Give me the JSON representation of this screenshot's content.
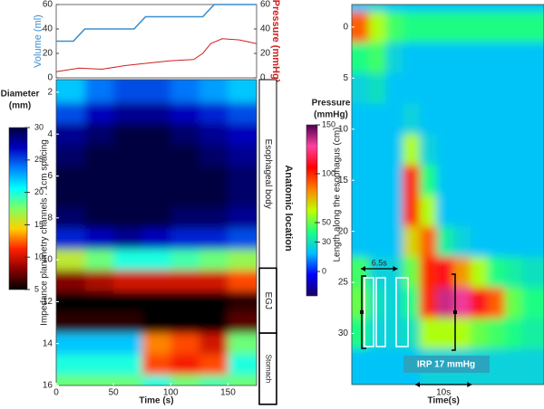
{
  "chart_data": [
    {
      "type": "line",
      "ylabel": "Volume (ml)",
      "y2label": "Pressure (mmHg)",
      "xlim": [
        0,
        175
      ],
      "ylim": [
        0,
        60
      ],
      "yticks": [
        0,
        20,
        40,
        60
      ],
      "y2lim": [
        0,
        60
      ],
      "y2ticks": [
        0,
        20,
        40,
        60
      ],
      "series": [
        {
          "color": "#3a8fd0",
          "x": [
            0,
            15,
            25,
            68,
            78,
            128,
            138,
            175
          ],
          "values": [
            30,
            30,
            40,
            40,
            50,
            50,
            60,
            60
          ]
        },
        {
          "color": "#d02020",
          "axis": "y2",
          "x": [
            0,
            20,
            40,
            60,
            80,
            100,
            120,
            128,
            135,
            145,
            160,
            175
          ],
          "values": [
            5,
            8,
            7,
            10,
            12,
            14,
            15,
            20,
            28,
            32,
            31,
            28
          ]
        }
      ]
    },
    {
      "type": "heatmap",
      "xlabel": "Time (s)",
      "ylabel": "Impedance planimetry channels : 1cm spacing",
      "xlim": [
        0,
        175
      ],
      "xticks": [
        0,
        50,
        100,
        150
      ],
      "ylim": [
        1.4,
        16
      ],
      "yticks": [
        2,
        4,
        6,
        8,
        10,
        12,
        14,
        16
      ],
      "x": [
        12.5,
        37.5,
        62.5,
        87.5,
        112.5,
        137.5,
        162.5
      ],
      "y": [
        2,
        3,
        4,
        5,
        6,
        7,
        8,
        9,
        10,
        11,
        12,
        13,
        14,
        15,
        16
      ],
      "z": [
        [
          22,
          24,
          25,
          25,
          24,
          23,
          22
        ],
        [
          25,
          27,
          28,
          28,
          27,
          26,
          25
        ],
        [
          28,
          29,
          30,
          30,
          29,
          28,
          27
        ],
        [
          29,
          30,
          30,
          30,
          30,
          29,
          28
        ],
        [
          30,
          30,
          30,
          30,
          30,
          30,
          29
        ],
        [
          30,
          30,
          30,
          30,
          30,
          30,
          29
        ],
        [
          29,
          30,
          30,
          30,
          29,
          29,
          28
        ],
        [
          26,
          27,
          28,
          27,
          26,
          26,
          25
        ],
        [
          16,
          18,
          20,
          20,
          19,
          18,
          17
        ],
        [
          8,
          9,
          10,
          10,
          10,
          10,
          12
        ],
        [
          5,
          5,
          5,
          5,
          5,
          5,
          6
        ],
        [
          6,
          6,
          6,
          5,
          5,
          5,
          7
        ],
        [
          22,
          22,
          22,
          13,
          12,
          10,
          18
        ],
        [
          20,
          20,
          20,
          12,
          11,
          12,
          20
        ],
        [
          18,
          18,
          18,
          20,
          18,
          19,
          18
        ]
      ],
      "colorbar_title": [
        "Diameter",
        "(mm)"
      ],
      "zlim": [
        5,
        30
      ],
      "zticks": [
        5,
        10,
        15,
        20,
        25,
        30
      ],
      "colorscale": [
        "#000000",
        "#8b0000",
        "#ff2000",
        "#ffd000",
        "#80ff60",
        "#00ffff",
        "#0080ff",
        "#0000c0",
        "#000040"
      ],
      "region_title": "Anatomic location",
      "regions": [
        {
          "label": "Esophageal body",
          "from": 1.4,
          "to": 10.4
        },
        {
          "label": "EGJ",
          "from": 10.4,
          "to": 13.5
        },
        {
          "label": "Stomach",
          "from": 13.5,
          "to": 16.9
        }
      ]
    },
    {
      "type": "heatmap",
      "xlabel": "Time(s)",
      "ylabel": "Length along the esophagus (cm)",
      "xlim": [
        0,
        34
      ],
      "ylim": [
        -2.2,
        35
      ],
      "yticks": [
        0,
        5,
        10,
        15,
        20,
        25,
        30
      ],
      "x": [
        1.5,
        4.5,
        7.5,
        10.5,
        13.5,
        16.5,
        19.5,
        22.5,
        25.5,
        28.5,
        31.5,
        34.5
      ],
      "y": [
        -3,
        0,
        3,
        6,
        9,
        12,
        15,
        18,
        21,
        24,
        27,
        30,
        33
      ],
      "z": [
        [
          20,
          25,
          20,
          20,
          20,
          20,
          20,
          20,
          20,
          20,
          20,
          20
        ],
        [
          90,
          60,
          45,
          40,
          40,
          40,
          40,
          40,
          40,
          40,
          40,
          40
        ],
        [
          40,
          45,
          25,
          20,
          20,
          20,
          20,
          20,
          20,
          20,
          20,
          20
        ],
        [
          25,
          30,
          20,
          20,
          20,
          20,
          20,
          20,
          20,
          20,
          20,
          20
        ],
        [
          20,
          20,
          20,
          25,
          20,
          20,
          20,
          20,
          20,
          20,
          20,
          20
        ],
        [
          20,
          20,
          20,
          60,
          25,
          20,
          20,
          20,
          20,
          20,
          20,
          20
        ],
        [
          20,
          20,
          20,
          100,
          40,
          20,
          20,
          20,
          20,
          20,
          20,
          20
        ],
        [
          20,
          20,
          20,
          100,
          60,
          20,
          20,
          20,
          20,
          20,
          20,
          20
        ],
        [
          20,
          20,
          20,
          70,
          90,
          35,
          25,
          20,
          20,
          20,
          20,
          20
        ],
        [
          45,
          25,
          25,
          50,
          100,
          110,
          80,
          60,
          40,
          35,
          30,
          30
        ],
        [
          50,
          30,
          25,
          40,
          100,
          135,
          130,
          110,
          90,
          50,
          40,
          40
        ],
        [
          40,
          25,
          25,
          30,
          60,
          60,
          60,
          50,
          45,
          40,
          35,
          35
        ],
        [
          20,
          20,
          20,
          20,
          25,
          25,
          25,
          25,
          25,
          25,
          25,
          25
        ]
      ],
      "colorbar_title": [
        "Pressure",
        "(mmHg)"
      ],
      "zlim": [
        -25,
        150
      ],
      "zticks": [
        0,
        30,
        50,
        100,
        150
      ],
      "colorscale": [
        "#1a0060",
        "#0000ff",
        "#00c0ff",
        "#20ff80",
        "#c0ff00",
        "#ff8000",
        "#ff0000",
        "#ff40a0",
        "#500050"
      ],
      "span_annotation": {
        "text": "6.5s",
        "value": 6.5,
        "from": 1.6
      },
      "irp_label": "IRP 17 mmHg",
      "scale_bar": {
        "label": "10s",
        "value": 10
      }
    }
  ]
}
